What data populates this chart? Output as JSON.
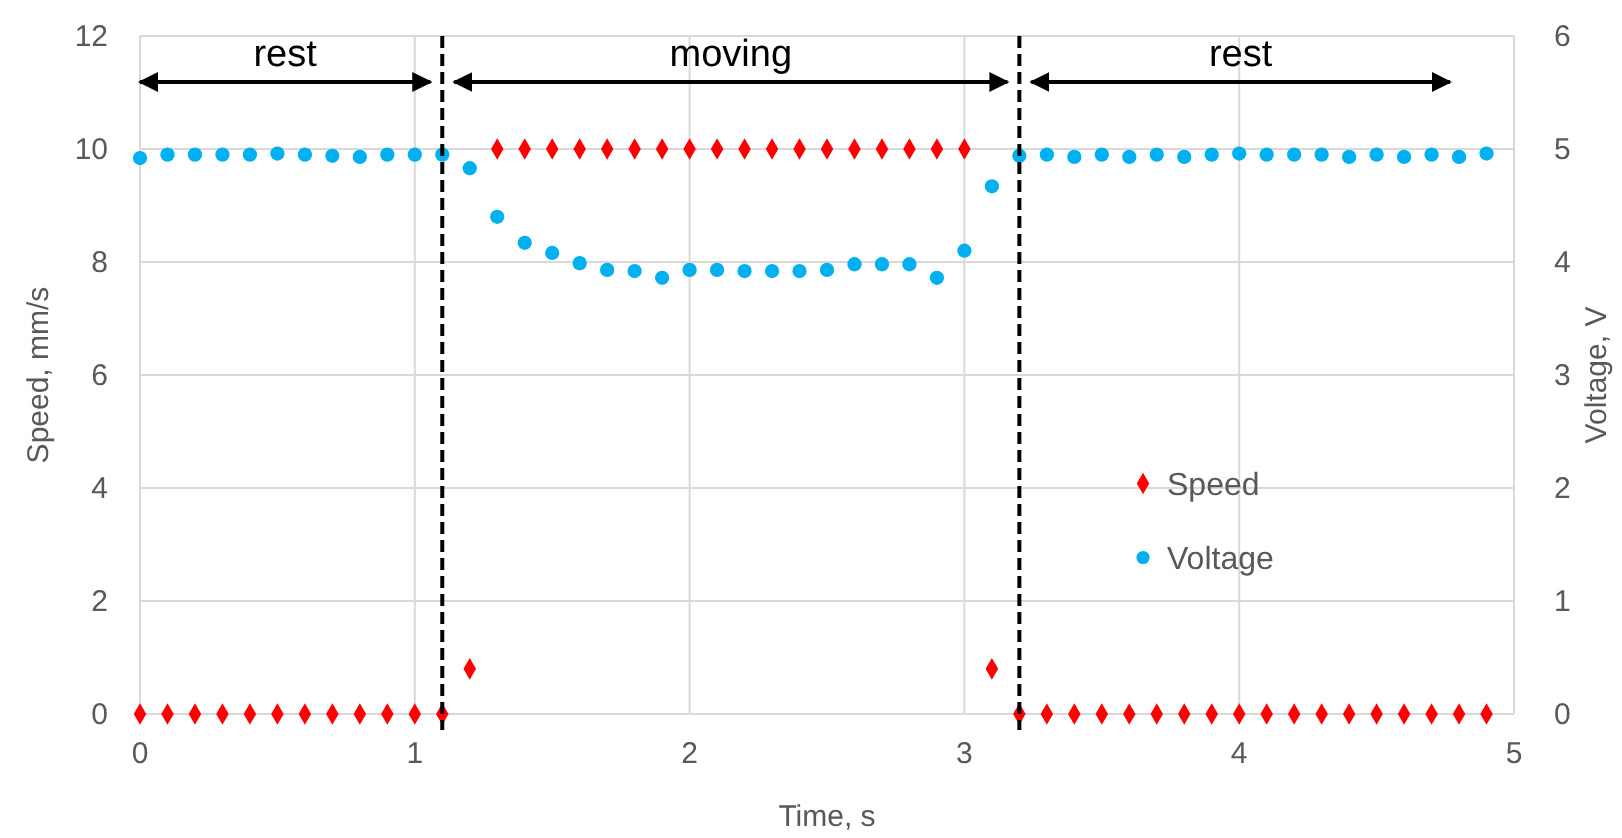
{
  "chart_data": {
    "type": "scatter",
    "xlabel": "Time, s",
    "ylabel": "Speed, mm/s",
    "y2label": "Voltage, V",
    "x": [
      0,
      0.1,
      0.2,
      0.3,
      0.4,
      0.5,
      0.6,
      0.7,
      0.8,
      0.9,
      1.0,
      1.1,
      1.2,
      1.3,
      1.4,
      1.5,
      1.6,
      1.7,
      1.8,
      1.9,
      2.0,
      2.1,
      2.2,
      2.3,
      2.4,
      2.5,
      2.6,
      2.7,
      2.8,
      2.9,
      3.0,
      3.1,
      3.2,
      3.3,
      3.4,
      3.5,
      3.6,
      3.7,
      3.8,
      3.9,
      4.0,
      4.1,
      4.2,
      4.3,
      4.4,
      4.5,
      4.6,
      4.7,
      4.8,
      4.9
    ],
    "series": [
      {
        "name": "Speed",
        "color": "#ff0000",
        "marker": "diamond",
        "values": [
          0,
          0,
          0,
          0,
          0,
          0,
          0,
          0,
          0,
          0,
          0,
          0,
          0.8,
          10,
          10,
          10,
          10,
          10,
          10,
          10,
          10,
          10,
          10,
          10,
          10,
          10,
          10,
          10,
          10,
          10,
          10,
          0.8,
          0,
          0,
          0,
          0,
          0,
          0,
          0,
          0,
          0,
          0,
          0,
          0,
          0,
          0,
          0,
          0,
          0,
          0
        ]
      },
      {
        "name": "Voltage",
        "color": "#00b0f0",
        "marker": "circle",
        "axis": "y2",
        "values": [
          4.92,
          4.95,
          4.95,
          4.95,
          4.95,
          4.96,
          4.95,
          4.94,
          4.93,
          4.95,
          4.95,
          4.95,
          4.83,
          4.4,
          4.17,
          4.08,
          3.99,
          3.93,
          3.92,
          3.86,
          3.93,
          3.93,
          3.92,
          3.92,
          3.92,
          3.93,
          3.98,
          3.98,
          3.98,
          3.86,
          4.1,
          4.67,
          4.94,
          4.95,
          4.93,
          4.95,
          4.93,
          4.95,
          4.93,
          4.95,
          4.96,
          4.95,
          4.95,
          4.95,
          4.93,
          4.95,
          4.93,
          4.95,
          4.93,
          4.96
        ]
      }
    ],
    "xlim": [
      0,
      5
    ],
    "xticks": [
      0,
      1,
      2,
      3,
      4,
      5
    ],
    "ylim": [
      0,
      12
    ],
    "yticks": [
      0,
      2,
      4,
      6,
      8,
      10,
      12
    ],
    "y2lim": [
      0,
      6
    ],
    "y2ticks": [
      0,
      1,
      2,
      3,
      4,
      5,
      6
    ],
    "ref_lines": [
      {
        "axis": "x",
        "value": 1.1,
        "color": "#000000",
        "line_style": "dashed"
      },
      {
        "axis": "x",
        "value": 3.2,
        "color": "#000000",
        "line_style": "dashed"
      }
    ],
    "annotations": [
      "rest",
      "moving",
      "rest"
    ],
    "grid": true,
    "legend": "right"
  }
}
